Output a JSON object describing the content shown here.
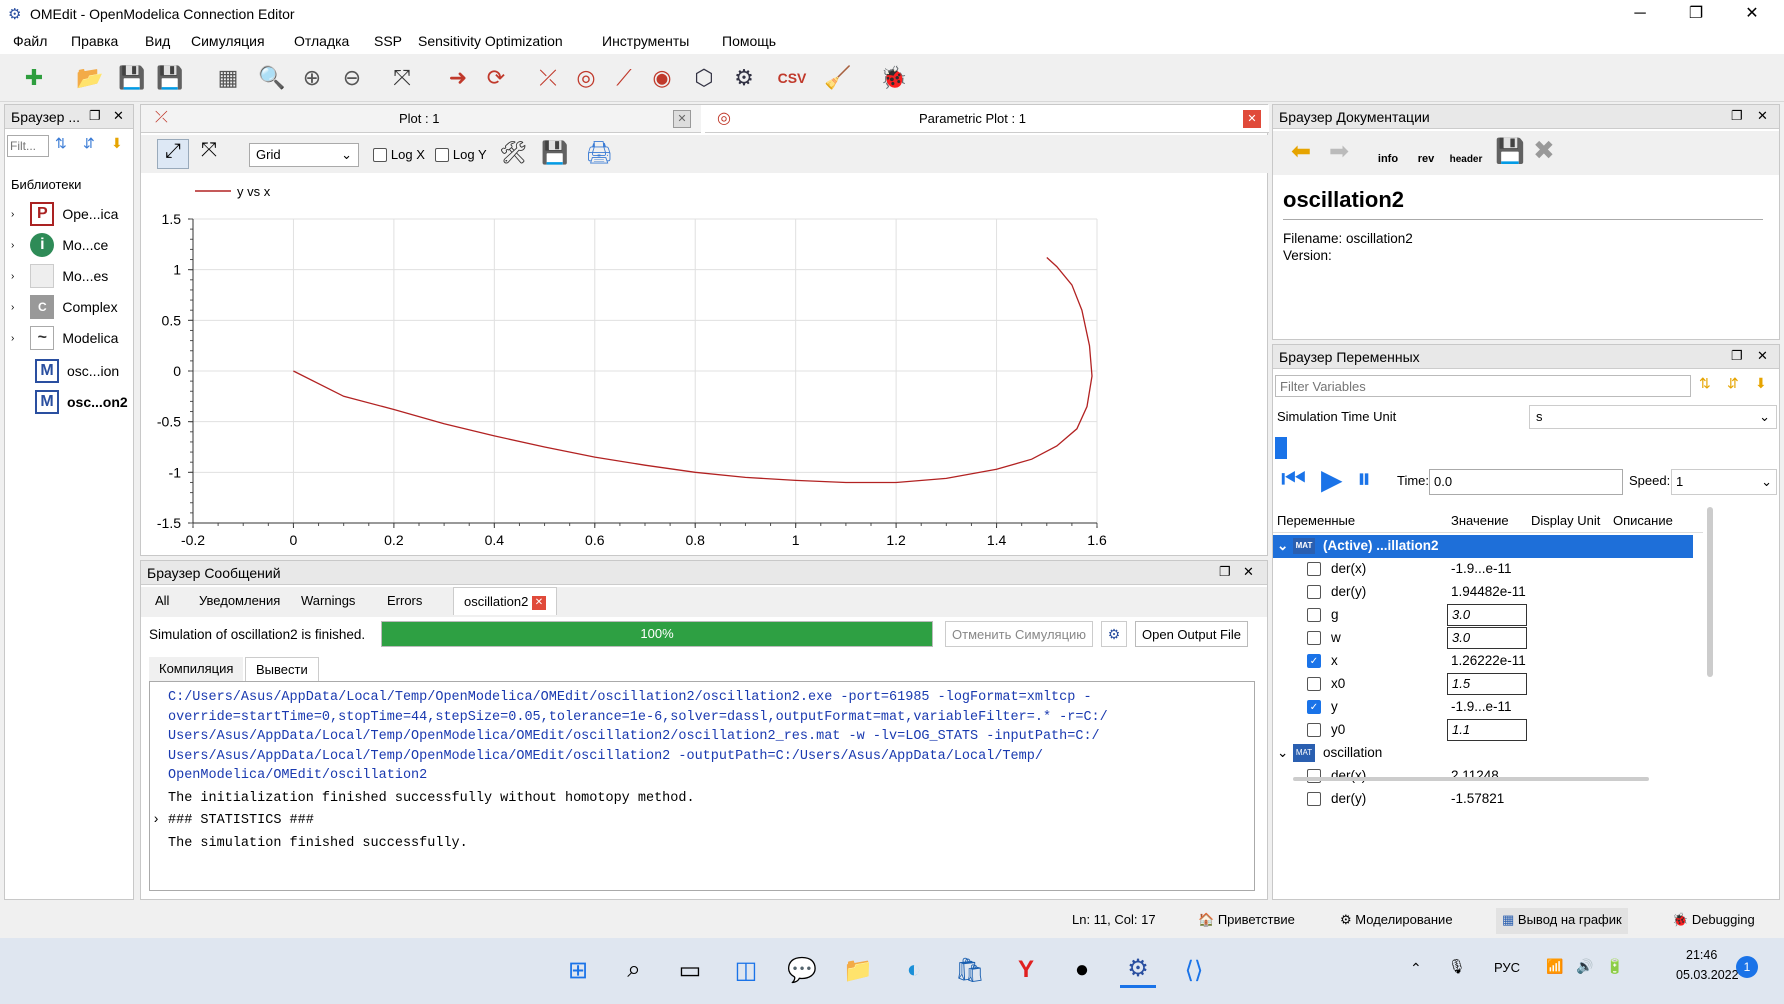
{
  "window": {
    "title": "OMEdit - OpenModelica Connection Editor",
    "minimize": "─",
    "restore": "❐",
    "close": "✕"
  },
  "menu": [
    "Файл",
    "Правка",
    "Вид",
    "Симуляция",
    "Отладка",
    "SSP",
    "Sensitivity Optimization",
    "Инструменты",
    "Помощь"
  ],
  "lib_browser": {
    "title": "Браузер ...",
    "filter_placeholder": "Filt...",
    "section": "Библиотеки",
    "items": [
      {
        "icon": "P",
        "label": "Ope...ica"
      },
      {
        "icon": "i",
        "label": "Mo...ce"
      },
      {
        "icon": "",
        "label": "Mo...es"
      },
      {
        "icon": "C",
        "label": "Complex"
      },
      {
        "icon": "~",
        "label": "Modelica"
      },
      {
        "icon": "M",
        "label": "osc...ion"
      },
      {
        "icon": "M",
        "label": "osc...on2"
      }
    ]
  },
  "plot_tabs": {
    "tab1": "Plot : 1",
    "tab2": "Parametric Plot : 1"
  },
  "plot_toolbar": {
    "grid_select": "Grid",
    "logx": "Log X",
    "logy": "Log Y"
  },
  "chart_data": {
    "type": "line",
    "series": [
      {
        "name": "y vs x",
        "color": "#b22222",
        "x": [
          0,
          0.1,
          0.2,
          0.3,
          0.4,
          0.5,
          0.6,
          0.7,
          0.8,
          0.9,
          1.0,
          1.1,
          1.2,
          1.3,
          1.4,
          1.47,
          1.52,
          1.56,
          1.58,
          1.59,
          1.585,
          1.57,
          1.55,
          1.52,
          1.5
        ],
        "y": [
          0,
          -0.25,
          -0.38,
          -0.52,
          -0.64,
          -0.75,
          -0.85,
          -0.93,
          -1.0,
          -1.05,
          -1.08,
          -1.1,
          -1.1,
          -1.06,
          -0.97,
          -0.87,
          -0.74,
          -0.57,
          -0.35,
          -0.05,
          0.25,
          0.6,
          0.85,
          1.03,
          1.12
        ]
      }
    ],
    "xlim": [
      -0.2,
      1.6
    ],
    "ylim": [
      -1.5,
      1.5
    ],
    "xticks": [
      "-0.2",
      "0",
      "0.2",
      "0.4",
      "0.6",
      "0.8",
      "1",
      "1.2",
      "1.4",
      "1.6"
    ],
    "yticks": [
      "1.5",
      "1",
      "0.5",
      "0",
      "-0.5",
      "-1",
      "-1.5"
    ],
    "grid": true,
    "legend": "top-left"
  },
  "messages": {
    "title": "Браузер Сообщений",
    "tabs": [
      "All",
      "Уведомления",
      "Warnings",
      "Errors",
      "oscillation2"
    ],
    "status": "Simulation of oscillation2 is finished.",
    "progress": "100%",
    "progress_value": 100,
    "cancel": "Отменить Симуляцию",
    "open_output": "Open Output File",
    "subtabs": [
      "Компиляция",
      "Вывести"
    ],
    "output_cmd": [
      "C:/Users/Asus/AppData/Local/Temp/OpenModelica/OMEdit/oscillation2/oscillation2.exe -port=61985 -logFormat=xmltcp -",
      "override=startTime=0,stopTime=44,stepSize=0.05,tolerance=1e-6,solver=dassl,outputFormat=mat,variableFilter=.* -r=C:/",
      "Users/Asus/AppData/Local/Temp/OpenModelica/OMEdit/oscillation2/oscillation2_res.mat -w -lv=LOG_STATS -inputPath=C:/",
      "Users/Asus/AppData/Local/Temp/OpenModelica/OMEdit/oscillation2 -outputPath=C:/Users/Asus/AppData/Local/Temp/",
      "OpenModelica/OMEdit/oscillation2"
    ],
    "output_init": "The initialization finished successfully without homotopy method.",
    "output_stats": "### STATISTICS ###",
    "output_done": "The simulation finished successfully."
  },
  "doc_browser": {
    "title": "Браузер Документации",
    "heading": "oscillation2",
    "filename": "Filename: oscillation2",
    "version": "Version:",
    "btn_info": "info",
    "btn_rev": "rev",
    "btn_header": "header"
  },
  "var_browser": {
    "title": "Браузер Переменных",
    "filter_placeholder": "Filter Variables",
    "sim_time_unit_label": "Simulation Time Unit",
    "sim_time_unit": "s",
    "time_label": "Time:",
    "time_value": "0.0",
    "speed_label": "Speed:",
    "speed_value": "1",
    "columns": [
      "Переменные",
      "Значение",
      "Display Unit",
      "Описание"
    ],
    "group1": "(Active) ...illation2",
    "group1_badge": "MAT",
    "rows1": [
      {
        "name": "der(x)",
        "value": "-1.9...e-11",
        "checked": false,
        "editable": false
      },
      {
        "name": "der(y)",
        "value": "1.94482e-11",
        "checked": false,
        "editable": false
      },
      {
        "name": "g",
        "value": "3.0",
        "checked": false,
        "editable": true
      },
      {
        "name": "w",
        "value": "3.0",
        "checked": false,
        "editable": true
      },
      {
        "name": "x",
        "value": "1.26222e-11",
        "checked": true,
        "editable": false
      },
      {
        "name": "x0",
        "value": "1.5",
        "checked": false,
        "editable": true
      },
      {
        "name": "y",
        "value": "-1.9...e-11",
        "checked": true,
        "editable": false
      },
      {
        "name": "y0",
        "value": "1.1",
        "checked": false,
        "editable": true
      }
    ],
    "group2": "oscillation",
    "group2_badge": "MAT",
    "rows2": [
      {
        "name": "der(x)",
        "value": "2.11248",
        "checked": false
      },
      {
        "name": "der(y)",
        "value": "-1.57821",
        "checked": false
      }
    ]
  },
  "statusbar": {
    "position": "Ln: 11, Col: 17",
    "perspectives": [
      "Приветствие",
      "Моделирование",
      "Вывод на график",
      "Debugging"
    ]
  },
  "taskbar": {
    "lang": "РУС",
    "time": "21:46",
    "date": "05.03.2022",
    "notif": "1"
  },
  "colors": {
    "accent": "#1a73e8",
    "progress": "#2ea043",
    "curve": "#b22222",
    "selection": "#1e6fd9"
  }
}
